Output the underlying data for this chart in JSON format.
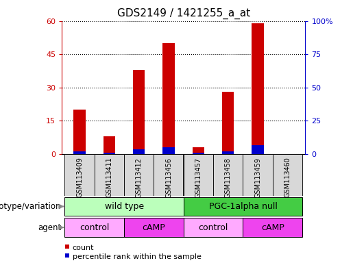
{
  "title": "GDS2149 / 1421255_a_at",
  "samples": [
    "GSM113409",
    "GSM113411",
    "GSM113412",
    "GSM113456",
    "GSM113457",
    "GSM113458",
    "GSM113459",
    "GSM113460"
  ],
  "count_values": [
    20,
    8,
    38,
    50,
    3,
    28,
    59,
    0
  ],
  "percentile_values": [
    1,
    0.5,
    2,
    3,
    0.5,
    1,
    4,
    0
  ],
  "ylim_left": [
    0,
    60
  ],
  "ylim_right": [
    0,
    100
  ],
  "yticks_left": [
    0,
    15,
    30,
    45,
    60
  ],
  "yticks_right": [
    0,
    25,
    50,
    75,
    100
  ],
  "count_color": "#cc0000",
  "percentile_color": "#0000cc",
  "bar_width": 0.4,
  "genotype_groups": [
    {
      "label": "wild type",
      "start": 0,
      "end": 4,
      "color": "#bbffbb"
    },
    {
      "label": "PGC-1alpha null",
      "start": 4,
      "end": 8,
      "color": "#44cc44"
    }
  ],
  "agent_groups": [
    {
      "label": "control",
      "start": 0,
      "end": 2,
      "color": "#ffaaff"
    },
    {
      "label": "cAMP",
      "start": 2,
      "end": 4,
      "color": "#ee44ee"
    },
    {
      "label": "control",
      "start": 4,
      "end": 6,
      "color": "#ffaaff"
    },
    {
      "label": "cAMP",
      "start": 6,
      "end": 8,
      "color": "#ee44ee"
    }
  ],
  "legend_count_label": "count",
  "legend_percentile_label": "percentile rank within the sample",
  "genotype_row_label": "genotype/variation",
  "agent_row_label": "agent",
  "bg_color": "#ffffff",
  "plot_bg_color": "#ffffff",
  "sample_label_bg": "#d8d8d8",
  "title_fontsize": 11,
  "tick_label_fontsize": 8,
  "sample_fontsize": 7,
  "row_label_fontsize": 8.5,
  "group_label_fontsize": 9
}
